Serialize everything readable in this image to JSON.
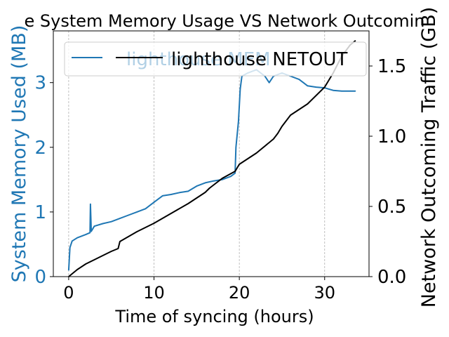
{
  "colors": {
    "mem": "#1f77b4",
    "net": "#000000",
    "grid": "#b0b0b0",
    "axes": "#000000",
    "legend_border": "#cccccc"
  },
  "chart_data": {
    "type": "line",
    "title": "e System Memory Usage VS Network Outcomin",
    "xlabel": "Time of syncing (hours)",
    "ylabel_left": "System Memory Used (MB)",
    "ylabel_right": "Network Outcoming Traffic (GB)",
    "xlim": [
      -1.8,
      35.2
    ],
    "ylim_left": [
      0,
      3.8
    ],
    "ylim_right": [
      0,
      1.75
    ],
    "x_ticks": [
      0,
      10,
      20,
      30
    ],
    "x_tick_labels": [
      "0",
      "10",
      "20",
      "30"
    ],
    "y_left_ticks": [
      0,
      1,
      2,
      3
    ],
    "y_left_tick_labels": [
      "0",
      "1",
      "2",
      "3"
    ],
    "y_right_ticks": [
      0.0,
      0.5,
      1.0,
      1.5
    ],
    "y_right_tick_labels": [
      "0.0",
      "0.5",
      "1.0",
      "1.5"
    ],
    "grid": "x-dashed",
    "legend_placement": "top",
    "series": [
      {
        "name": "lighthouse MEM",
        "axis": "left",
        "x": [
          0,
          0.15,
          0.4,
          1.0,
          2.0,
          2.5,
          2.55,
          2.65,
          3.0,
          4.0,
          5.0,
          6.0,
          7.0,
          8.0,
          9.0,
          10.0,
          11.0,
          12.0,
          13.0,
          14.0,
          15.0,
          16.0,
          17.0,
          18.0,
          19.0,
          19.5,
          19.6,
          19.9,
          20.1,
          20.3,
          21.0,
          22.0,
          23.0,
          23.5,
          24.0,
          25.0,
          26.0,
          27.0,
          27.5,
          28.0,
          29.0,
          30.0,
          30.5,
          31.0,
          32.0,
          33.0,
          33.6
        ],
        "y": [
          0.1,
          0.45,
          0.55,
          0.6,
          0.65,
          0.68,
          1.12,
          0.7,
          0.78,
          0.82,
          0.85,
          0.9,
          0.95,
          1.0,
          1.05,
          1.15,
          1.25,
          1.27,
          1.3,
          1.32,
          1.4,
          1.45,
          1.48,
          1.5,
          1.55,
          1.6,
          2.0,
          2.4,
          2.9,
          3.1,
          3.15,
          3.2,
          3.1,
          3.0,
          3.1,
          3.15,
          3.1,
          3.05,
          3.0,
          2.95,
          2.93,
          2.92,
          2.9,
          2.88,
          2.87,
          2.87,
          2.87
        ]
      },
      {
        "name": "lighthouse NETOUT",
        "axis": "right",
        "x": [
          0,
          1.0,
          2.0,
          3.0,
          4.0,
          5.0,
          5.8,
          6.0,
          8.0,
          10.0,
          12.0,
          14.0,
          16.0,
          16.5,
          18.0,
          19.5,
          20.0,
          22.0,
          24.0,
          24.5,
          25.0,
          26.0,
          28.0,
          30.0,
          31.0,
          32.0,
          33.0,
          33.6
        ],
        "y": [
          0.0,
          0.05,
          0.09,
          0.12,
          0.15,
          0.18,
          0.2,
          0.25,
          0.32,
          0.38,
          0.45,
          0.52,
          0.6,
          0.63,
          0.7,
          0.75,
          0.8,
          0.88,
          0.98,
          1.02,
          1.07,
          1.15,
          1.23,
          1.35,
          1.45,
          1.57,
          1.65,
          1.68
        ]
      }
    ]
  }
}
